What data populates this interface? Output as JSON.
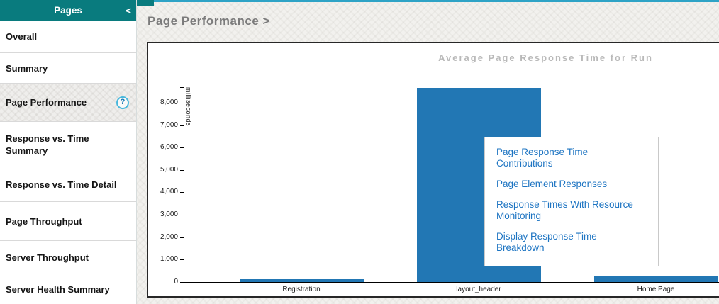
{
  "sidebar": {
    "title": "Pages",
    "collapse_icon": "<",
    "help_glyph": "?",
    "items": [
      {
        "label": "Overall",
        "selected": false,
        "has_help": false
      },
      {
        "label": "Summary",
        "selected": false,
        "has_help": false
      },
      {
        "label": "Page Performance",
        "selected": true,
        "has_help": true
      },
      {
        "label": "Response vs. Time Summary",
        "selected": false,
        "has_help": false
      },
      {
        "label": "Response vs. Time Detail",
        "selected": false,
        "has_help": false
      },
      {
        "label": "Page Throughput",
        "selected": false,
        "has_help": false
      },
      {
        "label": "Server Throughput",
        "selected": false,
        "has_help": false
      },
      {
        "label": "Server Health Summary",
        "selected": false,
        "has_help": false
      }
    ]
  },
  "main": {
    "breadcrumb": "Page Performance >"
  },
  "popup": {
    "items": [
      "Page Response Time Contributions",
      "Page Element Responses",
      "Response Times With Resource Monitoring",
      "Display Response Time Breakdown"
    ]
  },
  "chart_data": {
    "type": "bar",
    "title": "Average Page Response Time for Run",
    "xlabel": "",
    "ylabel": "milliseconds",
    "categories": [
      "Registration",
      "layout_header",
      "Home Page"
    ],
    "values": [
      120,
      8650,
      280
    ],
    "ylim": [
      0,
      8700
    ],
    "yticks": [
      0,
      1000,
      2000,
      3000,
      4000,
      5000,
      6000,
      7000,
      8000
    ],
    "grid": false,
    "legend": "none",
    "bar_color": "#2277b4"
  },
  "colors": {
    "sidebar_header": "#097b7e",
    "top_accent": "#2ea3c6",
    "bar": "#2277b4",
    "link": "#1d74c2",
    "chart_title": "#b9b9b9",
    "page_title": "#7b7b7b"
  }
}
